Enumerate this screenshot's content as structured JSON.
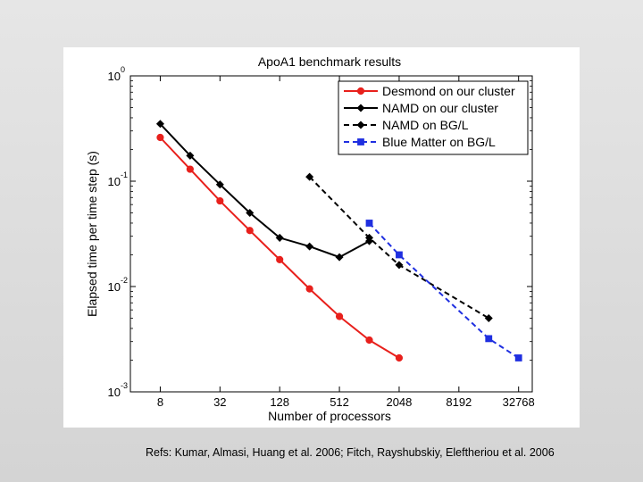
{
  "slide": {
    "refs": "Refs:  Kumar, Almasi, Huang et al. 2006; Fitch, Rayshubskiy, Eleftheriou et al. 2006"
  },
  "chart_data": {
    "type": "line",
    "title": "ApoA1 benchmark results",
    "xlabel": "Number of processors",
    "ylabel": "Elapsed time per time step (s)",
    "x_scale": "log2",
    "y_scale": "log10",
    "xlim": [
      4,
      45000
    ],
    "ylim": [
      0.001,
      1
    ],
    "x_ticks": [
      8,
      32,
      128,
      512,
      2048,
      8192,
      32768
    ],
    "x_tick_labels": [
      "8",
      "32",
      "128",
      "512",
      "2048",
      "8192",
      "32768"
    ],
    "y_ticks": [
      {
        "value": 1,
        "base": "10",
        "exp": "0"
      },
      {
        "value": 0.1,
        "base": "10",
        "exp": "-1"
      },
      {
        "value": 0.01,
        "base": "10",
        "exp": "-2"
      },
      {
        "value": 0.001,
        "base": "10",
        "exp": "-3"
      }
    ],
    "legend_position": "top-right",
    "series": [
      {
        "name": "Desmond on our cluster",
        "color": "#e8201c",
        "line_style": "solid",
        "marker": "circle",
        "x": [
          8,
          16,
          32,
          64,
          128,
          256,
          512,
          1024,
          2048
        ],
        "y": [
          0.26,
          0.13,
          0.065,
          0.034,
          0.018,
          0.0095,
          0.0052,
          0.0031,
          0.0021
        ]
      },
      {
        "name": "NAMD on our cluster",
        "color": "#000000",
        "line_style": "solid",
        "marker": "diamond",
        "x": [
          8,
          16,
          32,
          64,
          128,
          256,
          512,
          1024
        ],
        "y": [
          0.35,
          0.175,
          0.093,
          0.05,
          0.029,
          0.024,
          0.019,
          0.027
        ]
      },
      {
        "name": "NAMD on BG/L",
        "color": "#000000",
        "line_style": "dashed",
        "marker": "diamond",
        "x": [
          256,
          1024,
          2048,
          16384
        ],
        "y": [
          0.11,
          0.029,
          0.016,
          0.005
        ]
      },
      {
        "name": "Blue Matter on BG/L",
        "color": "#1f2fe0",
        "line_style": "dashed",
        "marker": "square",
        "x": [
          1024,
          2048,
          16384,
          32768
        ],
        "y": [
          0.04,
          0.02,
          0.0032,
          0.0021
        ]
      }
    ]
  }
}
